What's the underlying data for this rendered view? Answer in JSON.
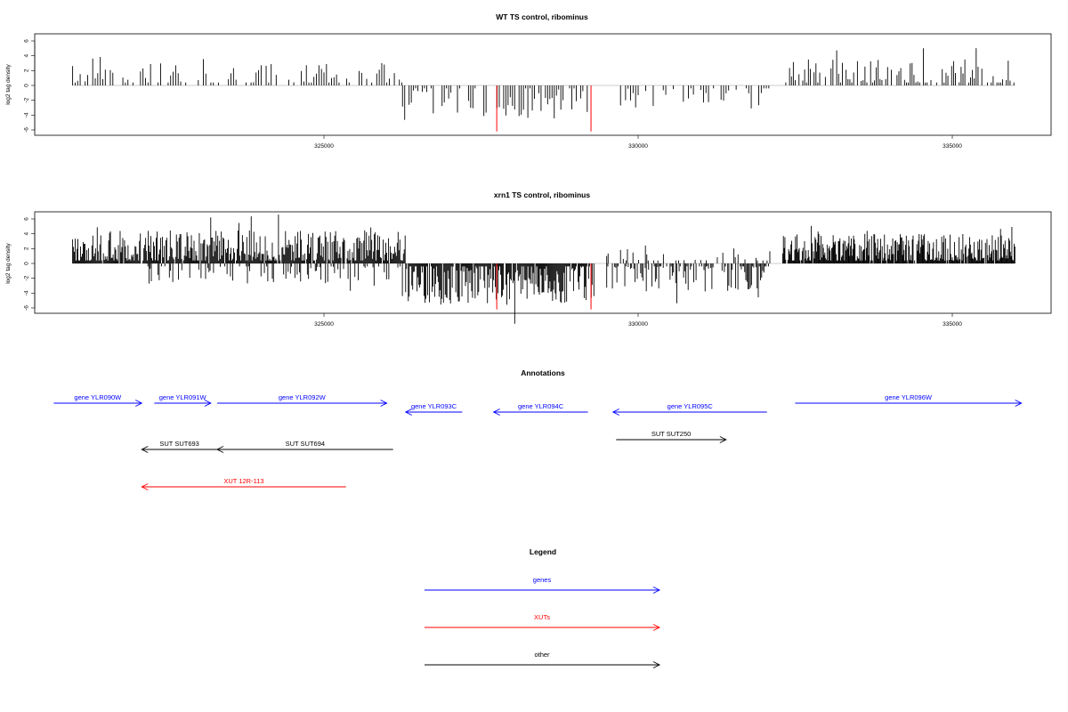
{
  "colors": {
    "gene": "#0000ff",
    "xut": "#ff0000",
    "other": "#000000",
    "highlight": "#ff0000",
    "bar": "#000000"
  },
  "chart_data": [
    {
      "type": "bar",
      "title": "WT TS control, ribominus",
      "ylabel": "log2 tag density",
      "xlim": [
        321000,
        336000
      ],
      "ylim": [
        -6,
        6
      ],
      "yticks": [
        -6,
        -4,
        -2,
        0,
        2,
        4,
        6
      ],
      "xticks": [
        325000,
        330000,
        335000
      ],
      "grid": false,
      "regions": [
        {
          "from": 321000,
          "to": 326250,
          "sign": 1,
          "max": 3.0,
          "density": 0.65,
          "step": 40
        },
        {
          "from": 326250,
          "to": 329200,
          "sign": -1,
          "max": 4.5,
          "density": 0.7,
          "step": 35
        },
        {
          "from": 329600,
          "to": 332100,
          "sign": -1,
          "max": 3.5,
          "density": 0.5,
          "step": 40
        },
        {
          "from": 332350,
          "to": 336000,
          "sign": 1,
          "max": 3.5,
          "density": 0.75,
          "step": 30
        }
      ],
      "highlight_bars": [
        {
          "x": 327750,
          "value": -6.2
        },
        {
          "x": 329250,
          "value": -6.2
        }
      ]
    },
    {
      "type": "bar",
      "title": "xrn1 TS control, ribominus",
      "ylabel": "log2 tag density",
      "xlim": [
        321000,
        336000
      ],
      "ylim": [
        -6,
        6
      ],
      "yticks": [
        -6,
        -4,
        -2,
        0,
        2,
        4,
        6
      ],
      "xticks": [
        325000,
        330000,
        335000
      ],
      "grid": false,
      "regions": [
        {
          "from": 321000,
          "to": 326300,
          "sign": 1,
          "max": 4.5,
          "density": 0.92,
          "step": 14
        },
        {
          "from": 322000,
          "to": 326300,
          "sign": -1,
          "max": 3.0,
          "density": 0.35,
          "step": 18
        },
        {
          "from": 326300,
          "to": 329300,
          "sign": -1,
          "max": 5.5,
          "density": 0.9,
          "step": 14
        },
        {
          "from": 329500,
          "to": 332100,
          "sign": -1,
          "max": 4.0,
          "density": 0.6,
          "step": 18
        },
        {
          "from": 329500,
          "to": 332100,
          "sign": 1,
          "max": 2.5,
          "density": 0.3,
          "step": 22
        },
        {
          "from": 332300,
          "to": 336000,
          "sign": 1,
          "max": 4.0,
          "density": 0.95,
          "step": 12
        }
      ],
      "highlight_bars": [
        {
          "x": 327750,
          "value": -6.2
        },
        {
          "x": 329250,
          "value": -6.2
        }
      ]
    }
  ],
  "annotations": {
    "title": "Annotations",
    "items": [
      {
        "label": "gene YLR090W",
        "kind": "gene",
        "from": 320700,
        "to": 322100,
        "row": 0
      },
      {
        "label": "gene YLR091W",
        "kind": "gene",
        "from": 322300,
        "to": 323200,
        "row": 0
      },
      {
        "label": "gene YLR092W",
        "kind": "gene",
        "from": 323300,
        "to": 326000,
        "row": 0
      },
      {
        "label": "gene YLR093C",
        "kind": "gene",
        "from": 327200,
        "to": 326300,
        "row": 1
      },
      {
        "label": "gene YLR094C",
        "kind": "gene",
        "from": 329200,
        "to": 327700,
        "row": 1
      },
      {
        "label": "gene YLR095C",
        "kind": "gene",
        "from": 332050,
        "to": 329600,
        "row": 1
      },
      {
        "label": "gene YLR096W",
        "kind": "gene",
        "from": 332500,
        "to": 336100,
        "row": 0
      },
      {
        "label": "SUT SUT693",
        "kind": "other",
        "from": 323300,
        "to": 322100,
        "row": 2
      },
      {
        "label": "SUT SUT694",
        "kind": "other",
        "from": 326100,
        "to": 323300,
        "row": 2
      },
      {
        "label": "SUT SUT250",
        "kind": "other",
        "from": 329650,
        "to": 331400,
        "row": 3
      },
      {
        "label": "XUT 12R-113",
        "kind": "xut",
        "from": 325350,
        "to": 322100,
        "row": 4
      }
    ]
  },
  "legend": {
    "title": "Legend",
    "items": [
      {
        "label": "genes",
        "kind": "gene"
      },
      {
        "label": "XUTs",
        "kind": "xut"
      },
      {
        "label": "other",
        "kind": "other"
      }
    ]
  }
}
